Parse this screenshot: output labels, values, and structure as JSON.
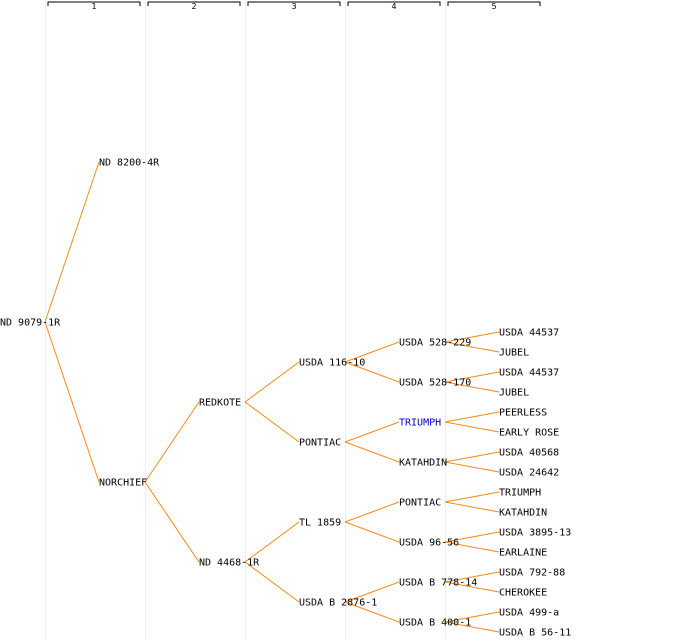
{
  "colors": {
    "edge": "#f28c1a",
    "grid": "#eeeeee",
    "text": "#000000",
    "highlight": "#0000cc"
  },
  "columns": [
    "1",
    "2",
    "3",
    "4",
    "5"
  ],
  "pedigree": {
    "name": "ND 9079-1R",
    "children": [
      {
        "name": "ND 8200-4R"
      },
      {
        "name": "NORCHIEF",
        "children": [
          {
            "name": "REDKOTE",
            "children": [
              {
                "name": "USDA 116-10",
                "children": [
                  {
                    "name": "USDA 528-229",
                    "children": [
                      {
                        "name": "USDA 44537"
                      },
                      {
                        "name": "JUBEL"
                      }
                    ]
                  },
                  {
                    "name": "USDA 528-170",
                    "children": [
                      {
                        "name": "USDA 44537"
                      },
                      {
                        "name": "JUBEL"
                      }
                    ]
                  }
                ]
              },
              {
                "name": "PONTIAC",
                "children": [
                  {
                    "name": "TRIUMPH",
                    "highlight": true,
                    "children": [
                      {
                        "name": "PEERLESS"
                      },
                      {
                        "name": "EARLY ROSE"
                      }
                    ]
                  },
                  {
                    "name": "KATAHDIN",
                    "children": [
                      {
                        "name": "USDA 40568"
                      },
                      {
                        "name": "USDA 24642"
                      }
                    ]
                  }
                ]
              }
            ]
          },
          {
            "name": "ND 4468-1R",
            "children": [
              {
                "name": "TL 1859",
                "children": [
                  {
                    "name": "PONTIAC",
                    "children": [
                      {
                        "name": "TRIUMPH"
                      },
                      {
                        "name": "KATAHDIN"
                      }
                    ]
                  },
                  {
                    "name": "USDA 96-56",
                    "children": [
                      {
                        "name": "USDA 3895-13"
                      },
                      {
                        "name": "EARLAINE"
                      }
                    ]
                  }
                ]
              },
              {
                "name": "USDA B 2876-1",
                "children": [
                  {
                    "name": "USDA B 778-14",
                    "children": [
                      {
                        "name": "USDA 792-88"
                      },
                      {
                        "name": "CHEROKEE"
                      }
                    ]
                  },
                  {
                    "name": "USDA B 400-1",
                    "children": [
                      {
                        "name": "USDA 499-a"
                      },
                      {
                        "name": "USDA B 56-11"
                      }
                    ]
                  }
                ]
              }
            ]
          }
        ]
      }
    ]
  }
}
